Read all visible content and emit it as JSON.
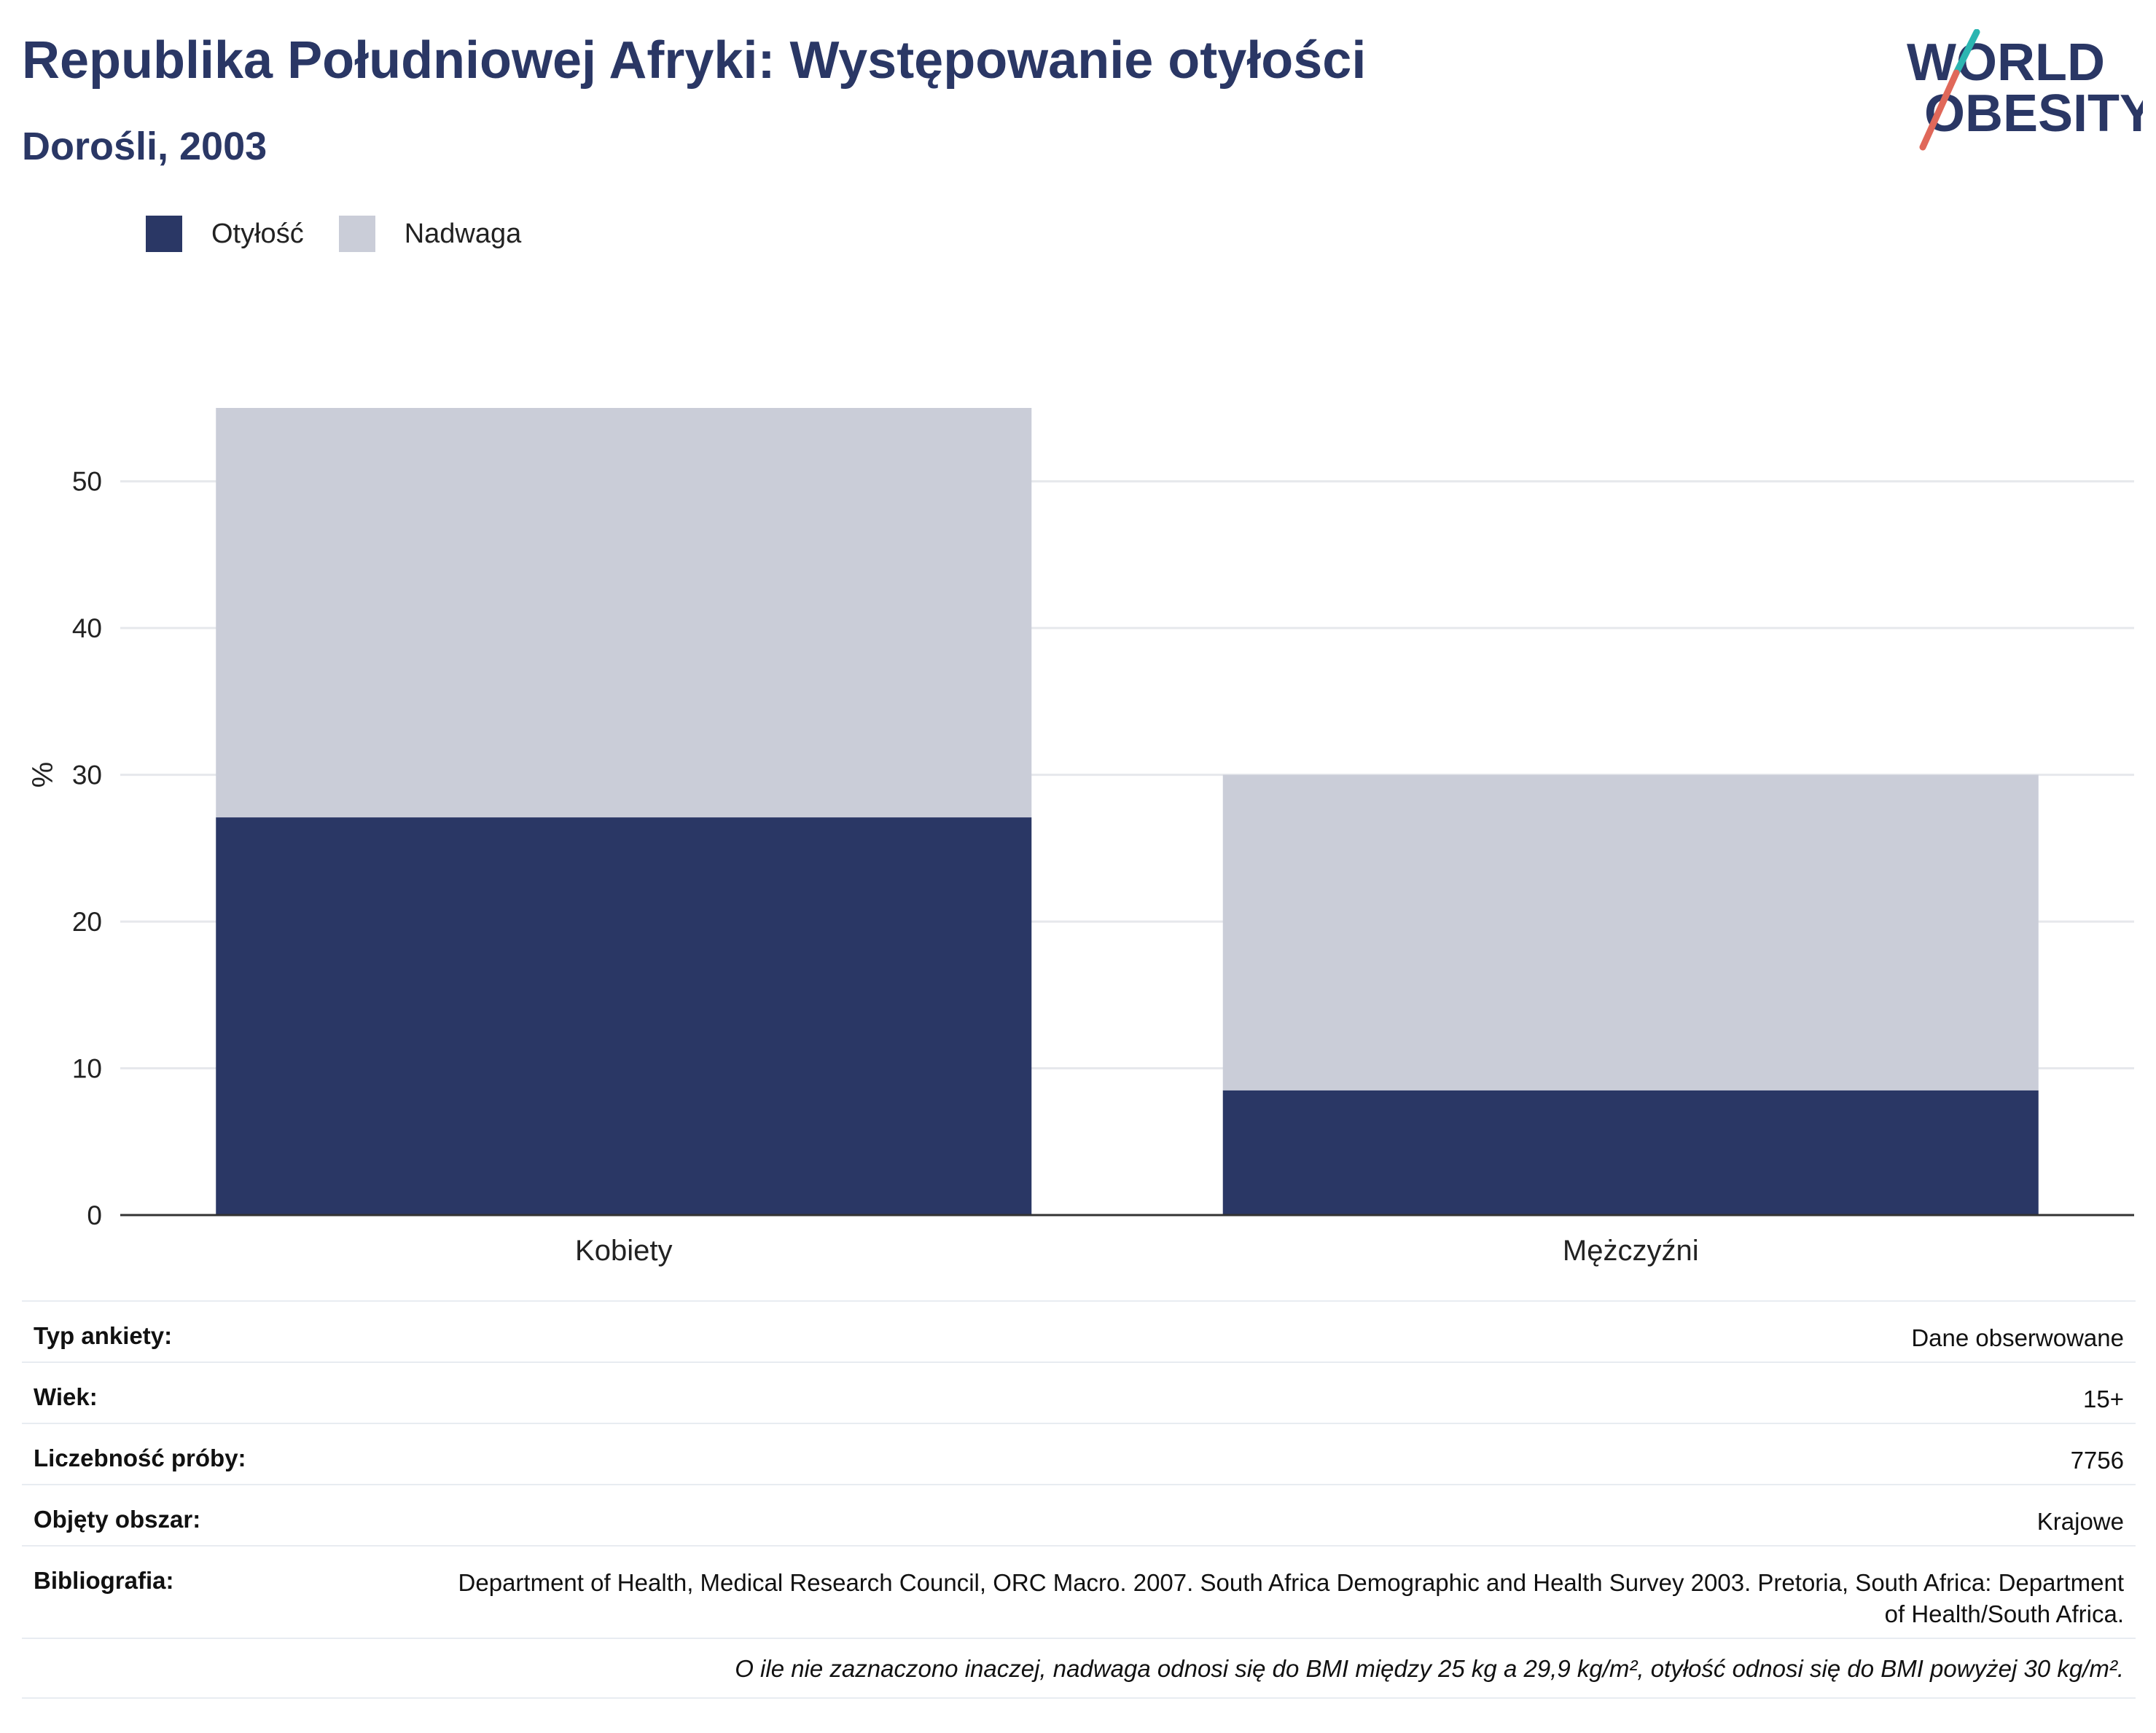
{
  "header": {
    "title": "Republika Południowej Afryki: Występowanie otyłości",
    "subtitle": "Dorośli, 2003"
  },
  "logo": {
    "line1": "WORLD",
    "line2": "OBESITY"
  },
  "colors": {
    "obesity": "#2a3765",
    "overweight": "#cacdd8",
    "accent_teal": "#2bb5b1",
    "accent_red": "#e0685a"
  },
  "chart_data": {
    "type": "bar",
    "stacked": true,
    "categories": [
      "Kobiety",
      "Mężczyźni"
    ],
    "series": [
      {
        "name": "Otyłość",
        "values": [
          27.1,
          8.5
        ]
      },
      {
        "name": "Nadwaga",
        "values": [
          27.9,
          21.5
        ]
      }
    ],
    "ylabel": "%",
    "ylim": [
      0,
      55
    ],
    "yticks": [
      0,
      10,
      20,
      30,
      40,
      50
    ],
    "grid": true,
    "legend_position": "top-left"
  },
  "meta": {
    "rows": [
      {
        "key": "Typ ankiety:",
        "value": "Dane obserwowane"
      },
      {
        "key": "Wiek:",
        "value": "15+"
      },
      {
        "key": "Liczebność próby:",
        "value": "7756"
      },
      {
        "key": "Objęty obszar:",
        "value": "Krajowe"
      },
      {
        "key": "Bibliografia:",
        "value": "Department of Health, Medical Research Council, ORC Macro. 2007. South Africa Demographic and Health Survey 2003. Pretoria, South Africa: Department of Health/South Africa."
      }
    ],
    "note": "O ile nie zaznaczono inaczej, nadwaga odnosi się do BMI między 25 kg a 29,9 kg/m², otyłość odnosi się do BMI powyżej 30 kg/m²."
  }
}
